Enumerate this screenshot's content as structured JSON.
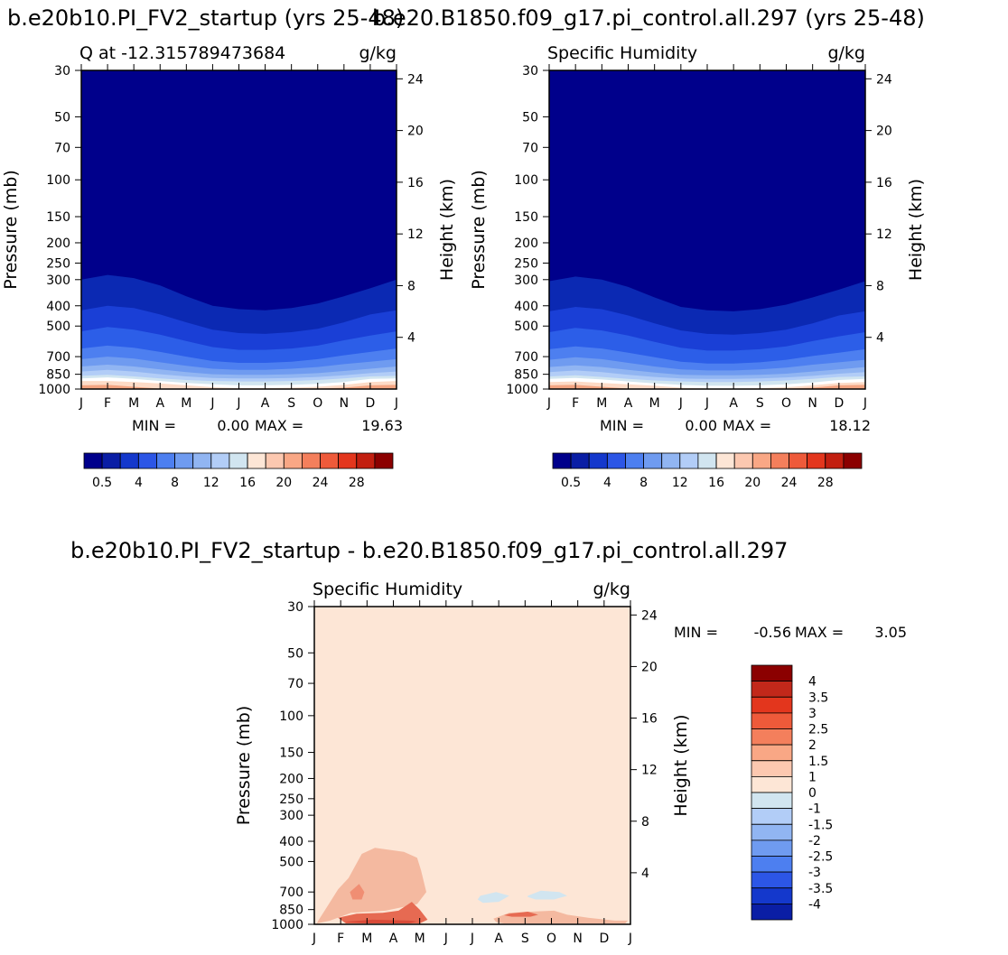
{
  "figure": {
    "title_left": "b.e20b10.PI_FV2_startup (yrs 25-48)",
    "title_right": "b.e20.B1850.f09_g17.pi_control.all.297 (yrs 25-48)",
    "diff_title": "b.e20b10.PI_FV2_startup - b.e20.B1850.f09_g17.pi_control.all.297"
  },
  "chart_data": [
    {
      "type": "contour",
      "panel": "case-1",
      "title": "Q at -12.31578947368422 g/kg",
      "title_main": "Q at -12.315789473684",
      "units": "g/kg",
      "xlabel": "",
      "ylabel": "Pressure (mb)",
      "ylabel_right": "Height (km)",
      "x_ticks": [
        "J",
        "F",
        "M",
        "A",
        "M",
        "J",
        "J",
        "A",
        "S",
        "O",
        "N",
        "D",
        "J"
      ],
      "y_ticks": [
        30,
        50,
        70,
        100,
        150,
        200,
        250,
        300,
        400,
        500,
        700,
        850,
        1000
      ],
      "y_right_ticks": [
        4,
        8,
        12,
        16,
        20,
        24
      ],
      "ylim": [
        30,
        1000
      ],
      "min_label": "MIN =",
      "min_value": "0.00",
      "max_label": "MAX =",
      "max_value": "19.63",
      "colorbar_levels": [
        "0.5",
        "4",
        "8",
        "12",
        "16",
        "20",
        "24",
        "28"
      ],
      "bands": [
        {
          "color": "#fddbc7",
          "base": [
            915,
            915,
            925,
            940,
            960,
            980,
            990,
            990,
            985,
            975,
            955,
            925,
            915
          ]
        },
        {
          "color": "#ffffff",
          "base": [
            890,
            880,
            895,
            915,
            935,
            950,
            960,
            960,
            955,
            945,
            925,
            895,
            890
          ]
        },
        {
          "color": "#d1e5f0",
          "base": [
            865,
            855,
            870,
            890,
            905,
            915,
            920,
            920,
            915,
            905,
            890,
            870,
            865
          ]
        },
        {
          "color": "#b2cdf7",
          "base": [
            825,
            810,
            825,
            850,
            870,
            885,
            890,
            890,
            885,
            875,
            860,
            840,
            825
          ]
        },
        {
          "color": "#91b5f2",
          "base": [
            780,
            765,
            780,
            805,
            830,
            850,
            855,
            855,
            850,
            840,
            820,
            800,
            780
          ]
        },
        {
          "color": "#6f9bf0",
          "base": [
            720,
            700,
            715,
            745,
            775,
            800,
            810,
            810,
            800,
            785,
            760,
            740,
            720
          ]
        },
        {
          "color": "#4d7ff0",
          "base": [
            640,
            620,
            635,
            665,
            700,
            735,
            750,
            750,
            740,
            720,
            690,
            665,
            640
          ]
        },
        {
          "color": "#2c5ee8",
          "base": [
            530,
            505,
            520,
            550,
            590,
            630,
            650,
            650,
            640,
            620,
            585,
            555,
            530
          ]
        },
        {
          "color": "#1a3fd6",
          "base": [
            420,
            400,
            410,
            440,
            480,
            520,
            540,
            545,
            535,
            515,
            480,
            440,
            420
          ]
        },
        {
          "color": "#0b29b3",
          "base": [
            300,
            285,
            295,
            320,
            360,
            400,
            415,
            420,
            410,
            390,
            360,
            330,
            300
          ]
        }
      ]
    },
    {
      "type": "contour",
      "panel": "case-2",
      "title": "Specific Humidity g/kg",
      "title_main": "Specific Humidity",
      "units": "g/kg",
      "xlabel": "",
      "ylabel": "Pressure (mb)",
      "ylabel_right": "Height (km)",
      "x_ticks": [
        "J",
        "F",
        "M",
        "A",
        "M",
        "J",
        "J",
        "A",
        "S",
        "O",
        "N",
        "D",
        "J"
      ],
      "y_ticks": [
        30,
        50,
        70,
        100,
        150,
        200,
        250,
        300,
        400,
        500,
        700,
        850,
        1000
      ],
      "y_right_ticks": [
        4,
        8,
        12,
        16,
        20,
        24
      ],
      "ylim": [
        30,
        1000
      ],
      "min_label": "MIN =",
      "min_value": "0.00",
      "max_label": "MAX =",
      "max_value": "18.12",
      "colorbar_levels": [
        "0.5",
        "4",
        "8",
        "12",
        "16",
        "20",
        "24",
        "28"
      ],
      "bands": [
        {
          "color": "#fddbc7",
          "base": [
            925,
            920,
            935,
            950,
            965,
            985,
            995,
            995,
            990,
            980,
            960,
            935,
            925
          ]
        },
        {
          "color": "#ffffff",
          "base": [
            895,
            885,
            900,
            920,
            940,
            955,
            965,
            965,
            960,
            950,
            930,
            905,
            895
          ]
        },
        {
          "color": "#d1e5f0",
          "base": [
            870,
            860,
            875,
            895,
            910,
            920,
            925,
            925,
            920,
            910,
            895,
            875,
            870
          ]
        },
        {
          "color": "#b2cdf7",
          "base": [
            830,
            815,
            830,
            855,
            875,
            890,
            895,
            895,
            890,
            880,
            865,
            845,
            830
          ]
        },
        {
          "color": "#91b5f2",
          "base": [
            785,
            770,
            785,
            810,
            835,
            855,
            860,
            860,
            855,
            845,
            825,
            805,
            785
          ]
        },
        {
          "color": "#6f9bf0",
          "base": [
            725,
            705,
            720,
            750,
            780,
            805,
            815,
            815,
            805,
            790,
            765,
            745,
            725
          ]
        },
        {
          "color": "#4d7ff0",
          "base": [
            645,
            625,
            640,
            670,
            705,
            740,
            755,
            755,
            745,
            725,
            695,
            670,
            645
          ]
        },
        {
          "color": "#2c5ee8",
          "base": [
            535,
            510,
            525,
            555,
            595,
            635,
            655,
            655,
            645,
            625,
            590,
            560,
            535
          ]
        },
        {
          "color": "#1a3fd6",
          "base": [
            425,
            405,
            415,
            445,
            485,
            525,
            545,
            550,
            540,
            520,
            485,
            445,
            425
          ]
        },
        {
          "color": "#0b29b3",
          "base": [
            305,
            290,
            300,
            325,
            365,
            405,
            420,
            425,
            415,
            395,
            365,
            335,
            305
          ]
        }
      ]
    },
    {
      "type": "contour",
      "panel": "difference",
      "title": "Specific Humidity g/kg",
      "title_main": "Specific Humidity",
      "units": "g/kg",
      "xlabel": "",
      "ylabel": "Pressure (mb)",
      "ylabel_right": "Height (km)",
      "x_ticks": [
        "J",
        "F",
        "M",
        "A",
        "M",
        "J",
        "J",
        "A",
        "S",
        "O",
        "N",
        "D",
        "J"
      ],
      "y_ticks": [
        30,
        50,
        70,
        100,
        150,
        200,
        250,
        300,
        400,
        500,
        700,
        850,
        1000
      ],
      "y_right_ticks": [
        4,
        8,
        12,
        16,
        20,
        24
      ],
      "ylim": [
        30,
        1000
      ],
      "min_label": "MIN =",
      "min_value": "-0.56",
      "max_label": "MAX =",
      "max_value": "3.05",
      "colorbar_levels": [
        "4",
        "3.5",
        "3",
        "2.5",
        "2",
        "1.5",
        "1",
        "0",
        "-1",
        "-1.5",
        "-2",
        "-2.5",
        "-3",
        "-3.5",
        "-4"
      ],
      "regions": [
        {
          "level": "0.5 to 1",
          "color": "#f4b9a0",
          "x": [
            0.15,
            0.55,
            0.9,
            1.3,
            1.8,
            2.3,
            3.4,
            3.9,
            4.05,
            4.25,
            3.9,
            2.7,
            1.4,
            0.6,
            0.1
          ],
          "p": [
            960,
            800,
            680,
            600,
            460,
            430,
            450,
            480,
            550,
            700,
            800,
            860,
            880,
            960,
            990
          ]
        },
        {
          "level": "1 to 1.5",
          "color": "#f08e73",
          "x": [
            1.35,
            1.7,
            1.9,
            1.8,
            1.45
          ],
          "p": [
            700,
            640,
            700,
            760,
            760
          ]
        },
        {
          "level": "1.5 to 2",
          "color": "#e66a52",
          "x": [
            0.9,
            1.6,
            2.6,
            3.2,
            3.7,
            4.0,
            4.3,
            4.0,
            2.4,
            1.2
          ],
          "p": [
            930,
            890,
            880,
            860,
            780,
            850,
            950,
            990,
            990,
            990
          ]
        },
        {
          "level": "2.5 to 3",
          "color": "#d94a38",
          "x": [
            1.1,
            2.2,
            3.6,
            3.9,
            3.6,
            2.0
          ],
          "p": [
            975,
            950,
            960,
            970,
            990,
            990
          ]
        },
        {
          "level": "0.5 to 1",
          "color": "#f4b9a0",
          "x": [
            6.8,
            7.4,
            8.2,
            9.1,
            9.6,
            10.4,
            11.4,
            11.9,
            11.8,
            10.2,
            8.6,
            7.2,
            6.9
          ],
          "p": [
            940,
            880,
            870,
            860,
            900,
            930,
            960,
            960,
            990,
            990,
            990,
            990,
            975
          ]
        },
        {
          "level": "1 to 1.5",
          "color": "#e66a52",
          "x": [
            7.4,
            8.1,
            8.5,
            8.2,
            7.5,
            7.2
          ],
          "p": [
            890,
            870,
            900,
            920,
            920,
            905
          ]
        },
        {
          "level": "-0.5 to 0",
          "color": "#d1e5f0",
          "x": [
            6.3,
            6.9,
            7.4,
            7.0,
            6.4,
            6.2
          ],
          "p": [
            730,
            700,
            730,
            780,
            790,
            760
          ]
        },
        {
          "level": "-0.5 to 0",
          "color": "#d1e5f0",
          "x": [
            8.1,
            8.6,
            9.3,
            9.6,
            9.1,
            8.4,
            8.1
          ],
          "p": [
            730,
            690,
            700,
            730,
            760,
            760,
            740
          ]
        }
      ]
    }
  ],
  "colormaps": {
    "absolute": [
      "#00008b",
      "#0a1ea5",
      "#1438cc",
      "#2c56e6",
      "#4d7ff0",
      "#6f9bf0",
      "#91b5f2",
      "#b2cdf7",
      "#d1e5f0",
      "#fde6d6",
      "#fcc8b0",
      "#f9a785",
      "#f47f5c",
      "#ee5a3a",
      "#e3361d",
      "#c21f10",
      "#8b0000"
    ],
    "difference": [
      "#8b0000",
      "#c2281a",
      "#e3361d",
      "#ee5a3a",
      "#f47f5c",
      "#f9a785",
      "#fcc8b0",
      "#fde6d6",
      "#d1e5f0",
      "#b2cdf7",
      "#91b5f2",
      "#6f9bf0",
      "#4d7ff0",
      "#2c56e6",
      "#1438cc",
      "#0a1ea5"
    ],
    "diff_background": "#fde6d6",
    "abs_background": "#00008b"
  }
}
